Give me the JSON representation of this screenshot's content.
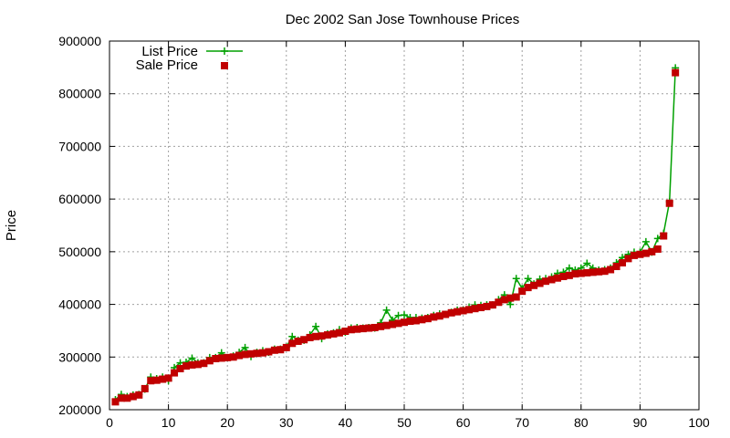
{
  "chart_data": {
    "type": "line",
    "title": "Dec 2002 San Jose Townhouse Prices",
    "xlabel": "",
    "ylabel": "Price",
    "xlim": [
      0,
      100
    ],
    "ylim": [
      200000,
      900000
    ],
    "xticks": [
      0,
      10,
      20,
      30,
      40,
      50,
      60,
      70,
      80,
      90,
      100
    ],
    "yticks": [
      200000,
      300000,
      400000,
      500000,
      600000,
      700000,
      800000,
      900000
    ],
    "grid": true,
    "legend_position": "top-left",
    "series": [
      {
        "name": "List Price",
        "style": "line+points",
        "marker": "plus",
        "color": "#00a000",
        "x": [
          1,
          2,
          3,
          4,
          5,
          6,
          7,
          8,
          9,
          10,
          11,
          12,
          13,
          14,
          15,
          16,
          17,
          18,
          19,
          20,
          21,
          22,
          23,
          24,
          25,
          26,
          27,
          28,
          29,
          30,
          31,
          32,
          33,
          34,
          35,
          36,
          37,
          38,
          39,
          40,
          41,
          42,
          43,
          44,
          45,
          46,
          47,
          48,
          49,
          50,
          51,
          52,
          53,
          54,
          55,
          56,
          57,
          58,
          59,
          60,
          61,
          62,
          63,
          64,
          65,
          66,
          67,
          68,
          69,
          70,
          71,
          72,
          73,
          74,
          75,
          76,
          77,
          78,
          79,
          80,
          81,
          82,
          83,
          84,
          85,
          86,
          87,
          88,
          89,
          90,
          91,
          92,
          93,
          94,
          95,
          96
        ],
        "y": [
          219000,
          229000,
          225000,
          228000,
          229000,
          239000,
          262000,
          259000,
          262000,
          255000,
          280000,
          289000,
          290000,
          298000,
          289000,
          289000,
          299000,
          299000,
          308000,
          299000,
          302000,
          309000,
          318000,
          301000,
          309000,
          312000,
          309000,
          315000,
          315000,
          319000,
          339000,
          332000,
          332000,
          342000,
          358000,
          335000,
          344000,
          346000,
          352000,
          347000,
          355000,
          356000,
          355000,
          356000,
          355000,
          365000,
          389000,
          370000,
          379000,
          380000,
          375000,
          375000,
          374000,
          375000,
          379000,
          382000,
          381000,
          385000,
          389000,
          389000,
          395000,
          399000,
          398000,
          399000,
          399000,
          409000,
          418000,
          400000,
          449000,
          430000,
          449000,
          439000,
          448000,
          449000,
          452000,
          459000,
          461000,
          469000,
          465000,
          469000,
          478000,
          469000,
          465000,
          466000,
          469000,
          479000,
          489000,
          495000,
          499000,
          499000,
          519000,
          499000,
          525000,
          535000,
          595000,
          849000
        ]
      },
      {
        "name": "Sale Price",
        "style": "points",
        "marker": "square",
        "color": "#c00000",
        "x": [
          1,
          2,
          3,
          4,
          5,
          6,
          7,
          8,
          9,
          10,
          11,
          12,
          13,
          14,
          15,
          16,
          17,
          18,
          19,
          20,
          21,
          22,
          23,
          24,
          25,
          26,
          27,
          28,
          29,
          30,
          31,
          32,
          33,
          34,
          35,
          36,
          37,
          38,
          39,
          40,
          41,
          42,
          43,
          44,
          45,
          46,
          47,
          48,
          49,
          50,
          51,
          52,
          53,
          54,
          55,
          56,
          57,
          58,
          59,
          60,
          61,
          62,
          63,
          64,
          65,
          66,
          67,
          68,
          69,
          70,
          71,
          72,
          73,
          74,
          75,
          76,
          77,
          78,
          79,
          80,
          81,
          82,
          83,
          84,
          85,
          86,
          87,
          88,
          89,
          90,
          91,
          92,
          93,
          94,
          95,
          96
        ],
        "y": [
          215000,
          222000,
          222000,
          225000,
          228000,
          240000,
          255000,
          256000,
          258000,
          260000,
          270000,
          278000,
          283000,
          285000,
          286000,
          288000,
          293000,
          297000,
          298000,
          299000,
          300000,
          303000,
          305000,
          306000,
          307000,
          308000,
          310000,
          313000,
          314000,
          318000,
          326000,
          330000,
          333000,
          337000,
          339000,
          340000,
          342000,
          344000,
          346000,
          349000,
          352000,
          353000,
          354000,
          355000,
          356000,
          358000,
          360000,
          362000,
          364000,
          366000,
          368000,
          369000,
          371000,
          373000,
          376000,
          378000,
          381000,
          384000,
          386000,
          388000,
          390000,
          392000,
          394000,
          396000,
          399000,
          404000,
          409000,
          412000,
          414000,
          425000,
          432000,
          436000,
          440000,
          444000,
          447000,
          450000,
          453000,
          455000,
          458000,
          459000,
          460000,
          461000,
          462000,
          463000,
          466000,
          472000,
          479000,
          487000,
          493000,
          495000,
          497000,
          500000,
          505000,
          530000,
          592000,
          840000
        ]
      }
    ]
  }
}
